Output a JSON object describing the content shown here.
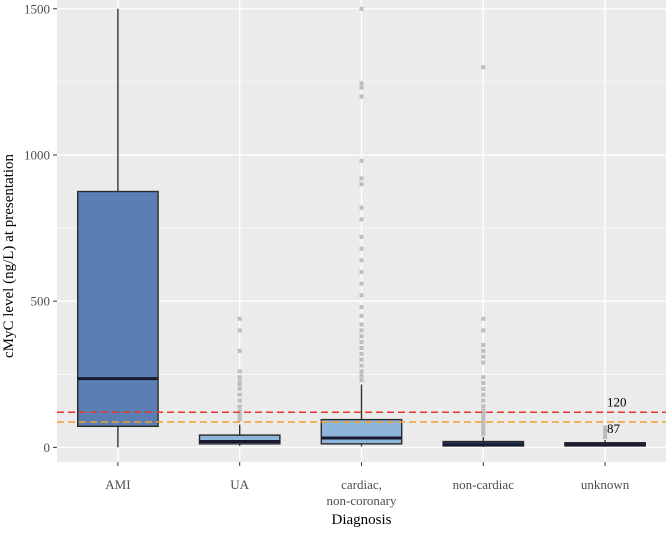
{
  "chart_data": {
    "type": "boxplot",
    "title": "",
    "xlabel": "Diagnosis",
    "ylabel": "cMyC level (ng/L) at presentation",
    "ylim": [
      -50,
      1530
    ],
    "yticks": [
      0,
      500,
      1000,
      1500
    ],
    "ytick_labels": [
      "0",
      "500",
      "1000",
      "1500"
    ],
    "grid": true,
    "categories": [
      {
        "name": "AMI",
        "lines": [
          "AMI"
        ],
        "whisker_low": 0,
        "q1": 72,
        "median": 235,
        "q3": 875,
        "whisker_high": 1500,
        "fill": "#5b7fb5",
        "outliers": []
      },
      {
        "name": "UA",
        "lines": [
          "UA"
        ],
        "whisker_low": 5,
        "q1": 12,
        "median": 20,
        "q3": 42,
        "whisker_high": 78,
        "fill": "#8eb6dc",
        "outliers": [
          95,
          105,
          115,
          125,
          140,
          160,
          180,
          200,
          215,
          225,
          240,
          260,
          330,
          400,
          440
        ]
      },
      {
        "name": "cardiac, non-coronary",
        "lines": [
          "cardiac,",
          "non-coronary"
        ],
        "whisker_low": 3,
        "q1": 12,
        "median": 32,
        "q3": 95,
        "whisker_high": 215,
        "fill": "#8eb6dc",
        "outliers": [
          230,
          245,
          260,
          280,
          300,
          320,
          340,
          360,
          380,
          400,
          420,
          450,
          480,
          520,
          560,
          600,
          640,
          680,
          720,
          780,
          820,
          900,
          920,
          980,
          1200,
          1230,
          1245,
          1500
        ]
      },
      {
        "name": "non-cardiac",
        "lines": [
          "non-cardiac"
        ],
        "whisker_low": 2,
        "q1": 5,
        "median": 8,
        "q3": 20,
        "whisker_high": 35,
        "fill": "#1f3a66",
        "outliers": [
          45,
          55,
          65,
          75,
          85,
          95,
          105,
          115,
          125,
          140,
          160,
          180,
          200,
          220,
          240,
          290,
          310,
          330,
          350,
          400,
          440,
          1300
        ]
      },
      {
        "name": "unknown",
        "lines": [
          "unknown"
        ],
        "whisker_low": 2,
        "q1": 5,
        "median": 8,
        "q3": 16,
        "whisker_high": 25,
        "fill": "#1f3a66",
        "outliers": [
          35,
          45,
          55,
          68
        ]
      }
    ],
    "reference_lines": [
      {
        "value": 120,
        "label": "120",
        "color": "#e63a2e"
      },
      {
        "value": 87,
        "label": "87",
        "color": "#f0a030"
      }
    ],
    "colors": {
      "panel_background": "#ebebeb",
      "grid": "#ffffff",
      "box_outline": "#2b2b2b",
      "whisker": "#333333",
      "median": "#1a1a2e",
      "outlier": "#bdbdbd"
    }
  }
}
